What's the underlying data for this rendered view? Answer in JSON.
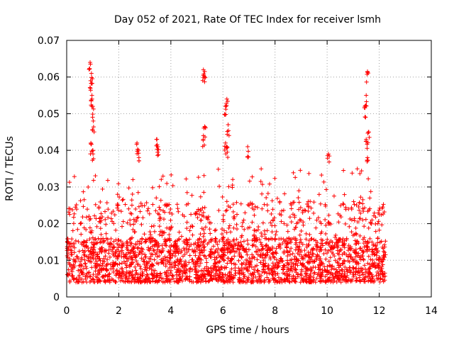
{
  "chart_data": {
    "type": "scatter",
    "title": "Day 052 of 2021, Rate Of TEC Index for receiver lsmh",
    "xlabel": "GPS time / hours",
    "ylabel": "ROTI / TECUs",
    "xlim": [
      0,
      14
    ],
    "ylim": [
      0,
      0.07
    ],
    "xticks": [
      0,
      2,
      4,
      6,
      8,
      10,
      12,
      14
    ],
    "xtick_labels": [
      "0",
      "2",
      "4",
      "6",
      "8",
      "10",
      "12",
      "14"
    ],
    "yticks": [
      0,
      0.01,
      0.02,
      0.03,
      0.04,
      0.05,
      0.06,
      0.07
    ],
    "ytick_labels": [
      "0",
      "0.01",
      "0.02",
      "0.03",
      "0.04",
      "0.05",
      "0.06",
      "0.07"
    ],
    "grid": true,
    "marker": "+",
    "color": "#ff0000",
    "series": [
      {
        "name": "ROTI",
        "description": "dense background band approx. 0.005-0.02 TECU/s spanning 0-12.25 h, plus these notable spikes",
        "base_range": [
          0.004,
          0.02
        ],
        "time_range": [
          0,
          12.25
        ],
        "spikes": [
          {
            "x": 0.9,
            "y": 0.064
          },
          {
            "x": 0.95,
            "y": 0.061
          },
          {
            "x": 0.92,
            "y": 0.059
          },
          {
            "x": 0.97,
            "y": 0.055
          },
          {
            "x": 1.0,
            "y": 0.052
          },
          {
            "x": 1.02,
            "y": 0.048
          },
          {
            "x": 0.93,
            "y": 0.042
          },
          {
            "x": 1.0,
            "y": 0.04
          },
          {
            "x": 2.7,
            "y": 0.042
          },
          {
            "x": 2.75,
            "y": 0.04
          },
          {
            "x": 3.45,
            "y": 0.043
          },
          {
            "x": 3.5,
            "y": 0.041
          },
          {
            "x": 5.25,
            "y": 0.062
          },
          {
            "x": 5.3,
            "y": 0.0615
          },
          {
            "x": 5.3,
            "y": 0.0465
          },
          {
            "x": 5.25,
            "y": 0.044
          },
          {
            "x": 6.15,
            "y": 0.054
          },
          {
            "x": 6.1,
            "y": 0.052
          },
          {
            "x": 6.2,
            "y": 0.047
          },
          {
            "x": 6.1,
            "y": 0.042
          },
          {
            "x": 6.15,
            "y": 0.041
          },
          {
            "x": 6.95,
            "y": 0.041
          },
          {
            "x": 10.05,
            "y": 0.039
          },
          {
            "x": 11.55,
            "y": 0.0615
          },
          {
            "x": 11.5,
            "y": 0.055
          },
          {
            "x": 11.45,
            "y": 0.052
          },
          {
            "x": 11.6,
            "y": 0.045
          },
          {
            "x": 11.5,
            "y": 0.043
          },
          {
            "x": 11.55,
            "y": 0.038
          }
        ]
      }
    ]
  }
}
